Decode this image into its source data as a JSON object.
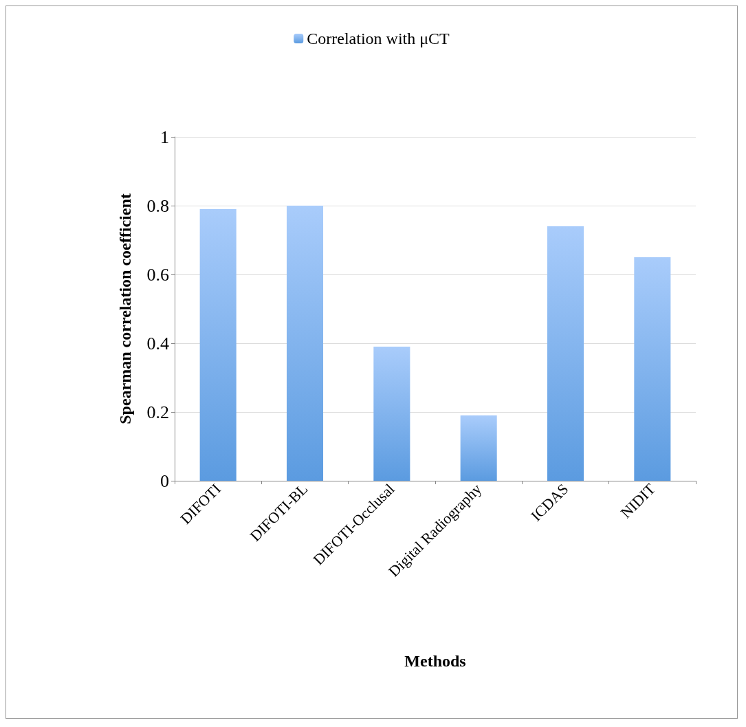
{
  "chart_data": {
    "type": "bar",
    "xlabel": "Methods",
    "ylabel": "Spearman correlation coefficient",
    "categories": [
      "DIFOTI",
      "DIFOTI-BL",
      "DIFOTI-Occlusal",
      "Digital Radiography",
      "ICDAS",
      "NIDIT"
    ],
    "series": [
      {
        "name": "Correlation with μCT",
        "color": "#5b9be0",
        "values": [
          0.79,
          0.8,
          0.39,
          0.19,
          0.74,
          0.65
        ]
      }
    ],
    "ylim": [
      0,
      1
    ],
    "yticks": [
      0,
      0.2,
      0.4,
      0.6,
      0.8,
      1
    ],
    "grid": "y",
    "legend": "top"
  }
}
